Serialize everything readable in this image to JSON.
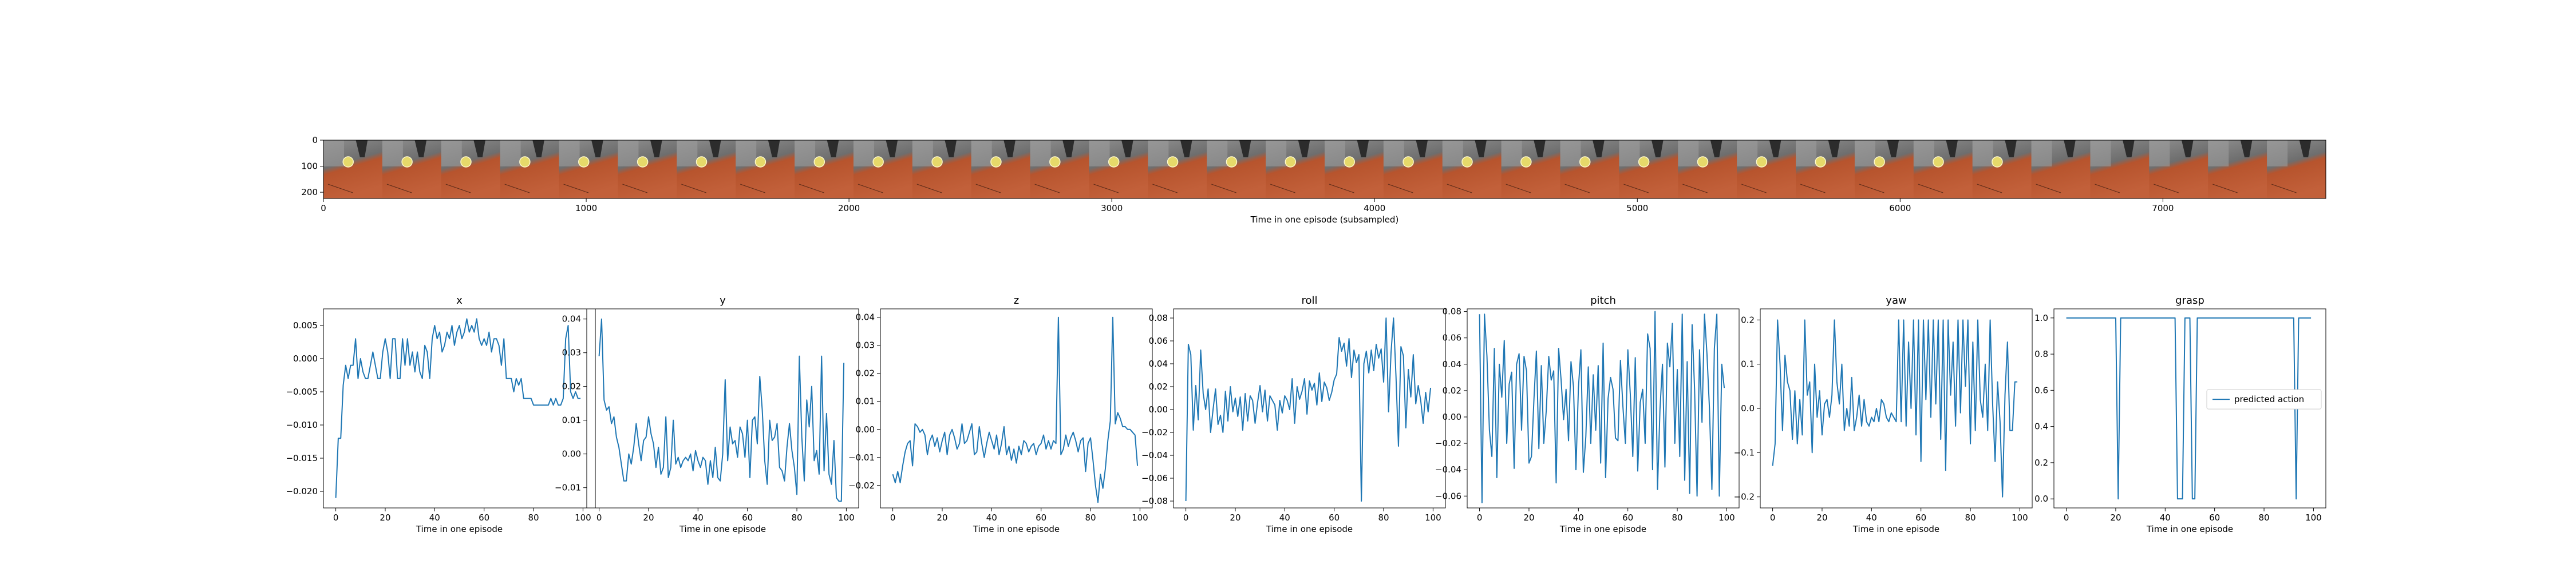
{
  "filmstrip": {
    "xlabel": "Time in one episode (subsampled)",
    "xlim": [
      0,
      7620
    ],
    "ylim": [
      0,
      224
    ],
    "xticks": [
      0,
      1000,
      2000,
      3000,
      4000,
      5000,
      6000,
      7000
    ],
    "yticks": [
      0,
      100,
      200
    ],
    "frame_count": 34,
    "colors": {
      "background": "#8f8f8f",
      "table": "#b7542d",
      "ball": "#e6d96a",
      "gripper": "#2c2c2c"
    }
  },
  "chart_data": [
    {
      "type": "line",
      "title": "x",
      "xlabel": "Time in one episode",
      "xticks": [
        0,
        20,
        40,
        60,
        80,
        100
      ],
      "xlim": [
        -5,
        105
      ],
      "ylim": [
        -0.0225,
        0.0075
      ],
      "yticks": [
        -0.02,
        -0.015,
        -0.01,
        -0.005,
        0.0,
        0.005
      ],
      "ytick_labels": [
        "−0.020",
        "−0.015",
        "−0.010",
        "−0.005",
        "0.000",
        "0.005"
      ],
      "color": "#1f77b4",
      "y": [
        -0.021,
        -0.012,
        -0.012,
        -0.004,
        -0.001,
        -0.003,
        -0.001,
        -0.001,
        0.003,
        -0.003,
        0.0,
        -0.002,
        -0.003,
        -0.003,
        -0.001,
        0.001,
        -0.001,
        -0.003,
        -0.003,
        0.001,
        0.003,
        0.001,
        -0.003,
        0.003,
        0.003,
        -0.003,
        -0.003,
        0.003,
        -0.001,
        0.003,
        -0.001,
        0.001,
        -0.002,
        0.001,
        -0.002,
        -0.003,
        0.002,
        0.001,
        -0.003,
        0.003,
        0.005,
        0.003,
        0.004,
        0.001,
        0.002,
        0.004,
        0.003,
        0.005,
        0.002,
        0.004,
        0.005,
        0.003,
        0.004,
        0.006,
        0.004,
        0.005,
        0.004,
        0.006,
        0.003,
        0.002,
        0.003,
        0.002,
        0.004,
        0.001,
        0.003,
        0.003,
        0.002,
        -0.001,
        0.003,
        -0.003,
        -0.003,
        -0.003,
        -0.005,
        -0.003,
        -0.004,
        -0.003,
        -0.006,
        -0.006,
        -0.006,
        -0.006,
        -0.007,
        -0.007,
        -0.007,
        -0.007,
        -0.007,
        -0.007,
        -0.007,
        -0.006,
        -0.007,
        -0.006,
        -0.007,
        -0.007,
        -0.006,
        0.003,
        0.005,
        -0.005,
        -0.006,
        -0.005,
        -0.006,
        -0.006
      ]
    },
    {
      "type": "line",
      "title": "y",
      "xlabel": "Time in one episode",
      "xticks": [
        0,
        20,
        40,
        60,
        80,
        100
      ],
      "xlim": [
        -5,
        105
      ],
      "ylim": [
        -0.016,
        0.043
      ],
      "yticks": [
        -0.01,
        0.0,
        0.01,
        0.02,
        0.03,
        0.04
      ],
      "ytick_labels": [
        "−0.01",
        "0.00",
        "0.01",
        "0.02",
        "0.03",
        "0.04"
      ],
      "color": "#1f77b4",
      "y": [
        0.029,
        0.04,
        0.016,
        0.013,
        0.014,
        0.009,
        0.011,
        0.005,
        0.002,
        -0.003,
        -0.008,
        -0.008,
        0.0,
        -0.003,
        0.002,
        0.009,
        0.003,
        -0.002,
        0.004,
        0.005,
        0.011,
        0.006,
        0.003,
        -0.004,
        0.002,
        -0.006,
        -0.004,
        0.011,
        -0.007,
        -0.004,
        0.01,
        -0.003,
        -0.001,
        -0.004,
        -0.002,
        -0.001,
        -0.002,
        0.0,
        -0.005,
        0.001,
        -0.002,
        -0.004,
        -0.001,
        -0.002,
        -0.009,
        -0.002,
        -0.007,
        0.002,
        -0.007,
        -0.008,
        0.0,
        0.022,
        -0.002,
        0.008,
        0.003,
        0.004,
        -0.001,
        0.008,
        0.006,
        -0.001,
        0.01,
        -0.007,
        0.01,
        0.011,
        0.003,
        0.023,
        0.013,
        -0.002,
        -0.009,
        0.01,
        0.004,
        0.005,
        0.009,
        -0.004,
        -0.005,
        -0.008,
        0.002,
        0.009,
        0.001,
        -0.004,
        -0.012,
        0.029,
        0.005,
        -0.008,
        0.016,
        0.008,
        0.02,
        -0.002,
        0.001,
        -0.006,
        0.029,
        -0.005,
        0.012,
        -0.006,
        -0.009,
        0.004,
        -0.013,
        -0.014,
        -0.014,
        0.027
      ]
    },
    {
      "type": "line",
      "title": "z",
      "xlabel": "Time in one episode",
      "xticks": [
        0,
        20,
        40,
        60,
        80,
        100
      ],
      "xlim": [
        -5,
        105
      ],
      "ylim": [
        -0.028,
        0.043
      ],
      "yticks": [
        -0.02,
        -0.01,
        0.0,
        0.01,
        0.02,
        0.03,
        0.04
      ],
      "ytick_labels": [
        "−0.02",
        "−0.01",
        "0.00",
        "0.01",
        "0.02",
        "0.03",
        "0.04"
      ],
      "color": "#1f77b4",
      "y": [
        -0.016,
        -0.019,
        -0.015,
        -0.019,
        -0.013,
        -0.008,
        -0.005,
        -0.004,
        -0.013,
        0.002,
        0.001,
        -0.001,
        0.0,
        -0.002,
        -0.009,
        -0.004,
        -0.002,
        -0.006,
        -0.003,
        -0.008,
        -0.004,
        -0.001,
        -0.009,
        -0.002,
        0.0,
        -0.003,
        -0.007,
        -0.005,
        0.002,
        -0.005,
        -0.004,
        -0.001,
        0.002,
        -0.009,
        -0.008,
        0.001,
        -0.005,
        -0.01,
        -0.005,
        -0.001,
        -0.004,
        -0.007,
        -0.002,
        -0.009,
        -0.005,
        0.001,
        -0.009,
        -0.006,
        -0.011,
        -0.007,
        -0.012,
        -0.006,
        -0.009,
        -0.004,
        -0.005,
        -0.008,
        -0.006,
        -0.005,
        -0.009,
        -0.006,
        -0.005,
        -0.002,
        -0.007,
        -0.004,
        -0.007,
        -0.004,
        -0.005,
        0.04,
        -0.009,
        -0.007,
        -0.002,
        -0.006,
        -0.003,
        -0.001,
        -0.004,
        -0.008,
        -0.004,
        -0.003,
        -0.015,
        -0.005,
        -0.003,
        -0.011,
        -0.02,
        -0.026,
        -0.016,
        -0.021,
        -0.014,
        -0.004,
        0.003,
        0.04,
        0.002,
        0.006,
        0.004,
        0.001,
        0.001,
        0.0,
        0.0,
        -0.001,
        -0.002,
        -0.013
      ]
    },
    {
      "type": "line",
      "title": "roll",
      "xlabel": "Time in one episode",
      "xticks": [
        0,
        20,
        40,
        60,
        80,
        100
      ],
      "xlim": [
        -5,
        105
      ],
      "ylim": [
        -0.086,
        0.088
      ],
      "yticks": [
        -0.08,
        -0.06,
        -0.04,
        -0.02,
        0.0,
        0.02,
        0.04,
        0.06,
        0.08
      ],
      "ytick_labels": [
        "−0.08",
        "−0.06",
        "−0.04",
        "−0.02",
        "0.00",
        "0.02",
        "0.04",
        "0.06",
        "0.08"
      ],
      "color": "#1f77b4",
      "y": [
        -0.08,
        0.057,
        0.048,
        -0.018,
        0.021,
        -0.009,
        0.052,
        0.014,
        0.0,
        0.018,
        -0.02,
        0.0,
        0.018,
        -0.013,
        -0.005,
        -0.02,
        0.016,
        -0.01,
        0.02,
        -0.002,
        0.01,
        -0.006,
        0.011,
        -0.018,
        0.014,
        -0.01,
        0.012,
        0.008,
        -0.012,
        0.006,
        0.021,
        -0.002,
        0.017,
        -0.01,
        0.012,
        0.008,
        0.004,
        -0.018,
        0.008,
        -0.003,
        0.012,
        0.008,
        0.0,
        0.027,
        -0.012,
        0.02,
        0.009,
        0.016,
        0.027,
        -0.004,
        0.025,
        0.017,
        0.023,
        0.004,
        0.032,
        0.007,
        0.024,
        0.019,
        0.008,
        0.015,
        0.026,
        0.031,
        0.063,
        0.051,
        0.058,
        0.038,
        0.062,
        0.028,
        0.052,
        0.041,
        0.048,
        -0.08,
        0.04,
        0.051,
        0.032,
        0.052,
        0.034,
        0.057,
        0.045,
        0.053,
        0.024,
        0.08,
        -0.002,
        0.05,
        0.08,
        0.029,
        -0.032,
        0.055,
        0.047,
        -0.016,
        0.035,
        0.011,
        0.048,
        0.005,
        0.021,
        0.008,
        -0.012,
        0.015,
        -0.002,
        0.019
      ]
    },
    {
      "type": "line",
      "title": "pitch",
      "xlabel": "Time in one episode",
      "xticks": [
        0,
        20,
        40,
        60,
        80,
        100
      ],
      "xlim": [
        -5,
        105
      ],
      "ylim": [
        -0.069,
        0.082
      ],
      "yticks": [
        -0.06,
        -0.04,
        -0.02,
        0.0,
        0.02,
        0.04,
        0.06,
        0.08
      ],
      "ytick_labels": [
        "−0.06",
        "−0.04",
        "−0.02",
        "0.00",
        "0.02",
        "0.04",
        "0.06",
        "0.08"
      ],
      "color": "#1f77b4",
      "y": [
        0.078,
        -0.065,
        0.078,
        0.046,
        -0.01,
        -0.03,
        0.052,
        -0.046,
        0.04,
        0.015,
        0.058,
        -0.02,
        0.025,
        0.034,
        -0.039,
        0.04,
        0.048,
        -0.01,
        0.046,
        0.035,
        -0.035,
        -0.03,
        0.013,
        0.05,
        -0.024,
        0.039,
        -0.02,
        0.005,
        0.046,
        0.028,
        0.035,
        -0.05,
        0.052,
        0.028,
        -0.002,
        0.021,
        -0.018,
        0.042,
        0.023,
        -0.04,
        0.022,
        0.051,
        -0.042,
        -0.015,
        0.038,
        -0.02,
        0.032,
        -0.01,
        0.039,
        -0.035,
        0.056,
        -0.046,
        0.014,
        0.03,
        0.021,
        -0.016,
        -0.018,
        0.043,
        0.008,
        -0.02,
        0.051,
        0.017,
        -0.03,
        0.045,
        -0.041,
        0.011,
        0.021,
        -0.02,
        0.063,
        0.052,
        -0.04,
        0.08,
        -0.055,
        0.006,
        0.04,
        -0.038,
        0.056,
        0.038,
        0.071,
        -0.02,
        0.036,
        -0.03,
        0.078,
        -0.048,
        0.042,
        -0.058,
        0.07,
        0.021,
        -0.06,
        0.051,
        -0.004,
        0.078,
        0.048,
        0.007,
        -0.055,
        0.052,
        0.078,
        -0.06,
        0.04,
        0.022
      ]
    },
    {
      "type": "line",
      "title": "yaw",
      "xlabel": "Time in one episode",
      "xticks": [
        0,
        20,
        40,
        60,
        80,
        100
      ],
      "xlim": [
        -5,
        105
      ],
      "ylim": [
        -0.225,
        0.225
      ],
      "yticks": [
        -0.2,
        -0.1,
        0.0,
        0.1,
        0.2
      ],
      "ytick_labels": [
        "−0.2",
        "−0.1",
        "0.0",
        "0.1",
        "0.2"
      ],
      "color": "#1f77b4",
      "y": [
        -0.13,
        -0.08,
        0.2,
        0.1,
        -0.05,
        0.12,
        0.06,
        0.04,
        -0.07,
        0.04,
        -0.08,
        0.02,
        -0.06,
        0.2,
        0.03,
        0.06,
        -0.1,
        0.1,
        -0.02,
        0.04,
        -0.06,
        0.01,
        0.02,
        -0.02,
        0.03,
        0.2,
        0.06,
        0.01,
        0.1,
        -0.05,
        0.0,
        -0.04,
        0.07,
        -0.05,
        -0.02,
        0.03,
        -0.04,
        0.02,
        -0.03,
        -0.04,
        -0.02,
        -0.03,
        0.0,
        -0.03,
        0.02,
        0.01,
        -0.02,
        -0.03,
        -0.01,
        -0.02,
        -0.03,
        0.2,
        -0.03,
        0.2,
        -0.04,
        0.15,
        0.0,
        0.2,
        -0.06,
        0.2,
        -0.12,
        0.2,
        0.02,
        0.2,
        -0.02,
        0.2,
        0.01,
        0.2,
        -0.07,
        0.2,
        -0.14,
        0.2,
        0.03,
        0.15,
        -0.04,
        0.2,
        -0.01,
        0.2,
        0.05,
        0.2,
        -0.08,
        0.15,
        -0.05,
        0.2,
        0.02,
        -0.02,
        0.1,
        -0.05,
        0.2,
        0.01,
        -0.12,
        0.06,
        -0.03,
        -0.2,
        0.03,
        0.15,
        -0.05,
        -0.05,
        0.06,
        0.06
      ]
    },
    {
      "type": "line",
      "title": "grasp",
      "xlabel": "Time in one episode",
      "xticks": [
        0,
        20,
        40,
        60,
        80,
        100
      ],
      "xlim": [
        -5,
        105
      ],
      "ylim": [
        -0.05,
        1.05
      ],
      "yticks": [
        0.0,
        0.2,
        0.4,
        0.6,
        0.8,
        1.0
      ],
      "ytick_labels": [
        "0.0",
        "0.2",
        "0.4",
        "0.6",
        "0.8",
        "1.0"
      ],
      "color": "#1f77b4",
      "legend": [
        "predicted action"
      ],
      "legend_loc": "center right",
      "y": [
        1.0,
        1.0,
        1.0,
        1.0,
        1.0,
        1.0,
        1.0,
        1.0,
        1.0,
        1.0,
        1.0,
        1.0,
        1.0,
        1.0,
        1.0,
        1.0,
        1.0,
        1.0,
        1.0,
        1.0,
        1.0,
        0.0,
        1.0,
        1.0,
        1.0,
        1.0,
        1.0,
        1.0,
        1.0,
        1.0,
        1.0,
        1.0,
        1.0,
        1.0,
        1.0,
        1.0,
        1.0,
        1.0,
        1.0,
        1.0,
        1.0,
        1.0,
        1.0,
        1.0,
        1.0,
        0.0,
        0.0,
        0.0,
        1.0,
        1.0,
        1.0,
        0.0,
        0.0,
        1.0,
        1.0,
        1.0,
        1.0,
        1.0,
        1.0,
        1.0,
        1.0,
        1.0,
        1.0,
        1.0,
        1.0,
        1.0,
        1.0,
        1.0,
        1.0,
        1.0,
        1.0,
        1.0,
        1.0,
        1.0,
        1.0,
        1.0,
        1.0,
        1.0,
        1.0,
        1.0,
        1.0,
        1.0,
        1.0,
        1.0,
        1.0,
        1.0,
        1.0,
        1.0,
        1.0,
        1.0,
        1.0,
        1.0,
        1.0,
        0.0,
        1.0,
        1.0,
        1.0,
        1.0,
        1.0,
        1.0
      ]
    }
  ]
}
